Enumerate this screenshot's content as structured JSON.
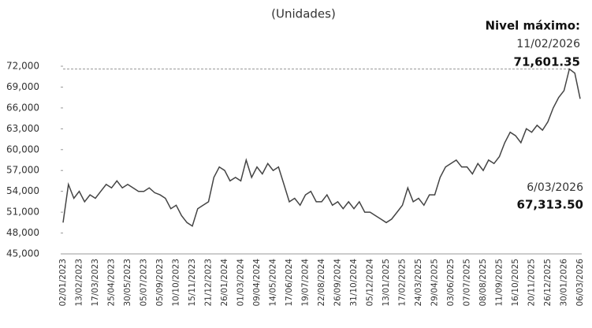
{
  "chart_data": {
    "type": "line",
    "title": "(Unidades)",
    "categories": [
      "02/01/2023",
      null,
      null,
      "13/02/2023",
      null,
      null,
      "17/03/2023",
      null,
      null,
      "25/04/2023",
      null,
      null,
      "30/05/2023",
      null,
      null,
      "05/07/2023",
      null,
      null,
      "05/09/2023",
      null,
      null,
      "10/10/2023",
      null,
      null,
      "15/11/2023",
      null,
      null,
      "21/12/2023",
      null,
      null,
      "26/01/2024",
      null,
      null,
      "01/03/2024",
      null,
      null,
      "09/04/2024",
      null,
      null,
      "14/05/2024",
      null,
      null,
      "17/06/2024",
      null,
      null,
      "19/07/2024",
      null,
      null,
      "22/08/2024",
      null,
      null,
      "26/09/2024",
      null,
      null,
      "31/10/2024",
      null,
      null,
      "05/12/2024",
      null,
      null,
      "13/01/2025",
      null,
      null,
      "17/02/2025",
      null,
      null,
      "24/03/2025",
      null,
      null,
      "29/04/2025",
      null,
      null,
      "03/06/2025",
      null,
      null,
      "07/07/2025",
      null,
      null,
      "08/08/2025",
      null,
      null,
      "11/09/2025",
      null,
      null,
      "16/10/2025",
      null,
      null,
      "20/11/2025",
      null,
      null,
      "26/12/2025",
      null,
      null,
      "30/01/2026",
      null,
      null,
      "06/03/2026"
    ],
    "series": [
      {
        "color": "#444444",
        "values": [
          49500,
          55000,
          53000,
          54000,
          52500,
          53500,
          53000,
          54000,
          55000,
          54500,
          55500,
          54500,
          55000,
          54500,
          54000,
          54000,
          54500,
          53800,
          53500,
          53000,
          51500,
          52000,
          50500,
          49500,
          49000,
          51500,
          52000,
          52500,
          56000,
          57500,
          57000,
          55500,
          56000,
          55500,
          58500,
          56000,
          57500,
          56500,
          58000,
          57000,
          57500,
          55000,
          52500,
          53000,
          52000,
          53500,
          54000,
          52500,
          52500,
          53500,
          52000,
          52500,
          51500,
          52500,
          51500,
          52500,
          51000,
          51000,
          50500,
          50000,
          49500,
          50000,
          51000,
          52000,
          54500,
          52500,
          53000,
          52000,
          53500,
          53500,
          56000,
          57500,
          58000,
          58500,
          57500,
          57500,
          56500,
          58000,
          57000,
          58500,
          58000,
          59000,
          61000,
          62500,
          62000,
          61000,
          63000,
          62500,
          63500,
          62800,
          64000,
          66000,
          67500,
          68500,
          71601.35,
          71000,
          67313.5
        ]
      }
    ],
    "ylim": [
      45000,
      72000
    ],
    "yticks": [
      {
        "value": 45000,
        "label": "45,000"
      },
      {
        "value": 48000,
        "label": "48,000"
      },
      {
        "value": 51000,
        "label": "51,000"
      },
      {
        "value": 54000,
        "label": "54,000"
      },
      {
        "value": 57000,
        "label": "57,000"
      },
      {
        "value": 60000,
        "label": "60,000"
      },
      {
        "value": 63000,
        "label": "63,000"
      },
      {
        "value": 66000,
        "label": "66,000"
      },
      {
        "value": 69000,
        "label": "69,000"
      },
      {
        "value": 72000,
        "label": "72,000"
      }
    ],
    "annotations": {
      "max": {
        "label": "Nivel máximo:",
        "date": "11/02/2026",
        "value": 71601.35,
        "value_label": "71,601.35"
      },
      "last": {
        "date": "6/03/2026",
        "value": 67313.5,
        "value_label": "67,313.50"
      }
    }
  }
}
